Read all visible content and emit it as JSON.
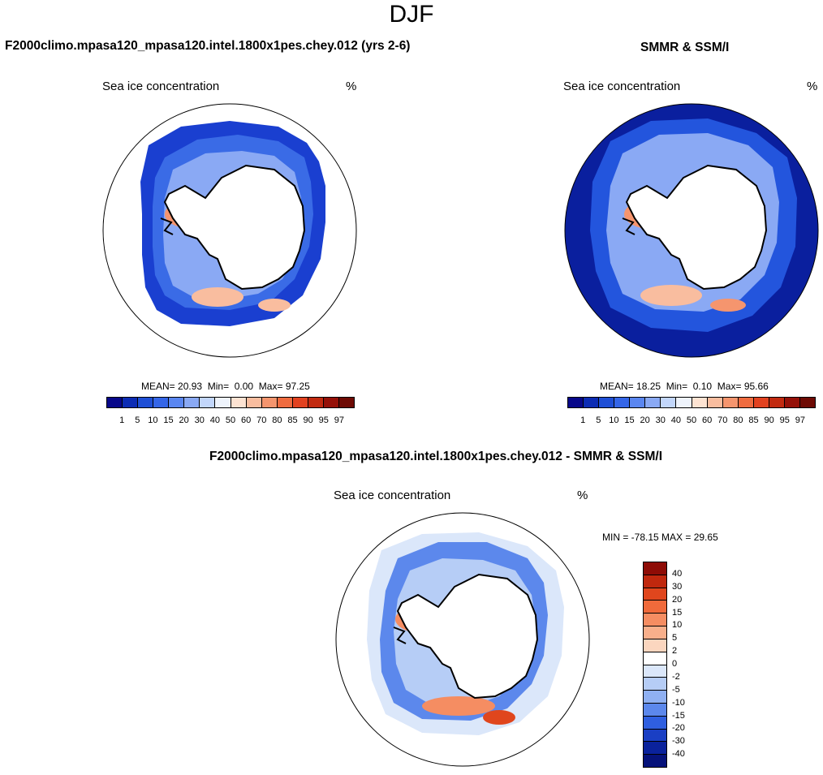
{
  "page_title": "DJF",
  "panels": [
    {
      "title": "F2000climo.mpasa120_mpasa120.intel.1800x1pes.chey.012 (yrs 2-6)",
      "field_label": "Sea ice concentration",
      "units": "%",
      "stats": {
        "mean_label": "MEAN=",
        "mean": "20.93",
        "min_label": "Min=",
        "min": "0.00",
        "max_label": "Max=",
        "max": "97.25"
      }
    },
    {
      "title": "SMMR & SSM/I",
      "field_label": "Sea ice concentration",
      "units": "%",
      "stats": {
        "mean_label": "MEAN=",
        "mean": "18.25",
        "min_label": "Min=",
        "min": "0.10",
        "max_label": "Max=",
        "max": "95.66"
      }
    },
    {
      "title": "F2000climo.mpasa120_mpasa120.intel.1800x1pes.chey.012 - SMMR & SSM/I",
      "field_label": "Sea ice concentration",
      "units": "%",
      "stats_text": "MIN = -78.15 MAX =  29.65"
    }
  ],
  "colorbar_concentration": {
    "levels": [
      "1",
      "5",
      "10",
      "15",
      "20",
      "30",
      "40",
      "50",
      "60",
      "70",
      "80",
      "85",
      "90",
      "95",
      "97"
    ],
    "colors": [
      "#08088a",
      "#0c2cb4",
      "#1f4fd6",
      "#3566e8",
      "#5a86f0",
      "#8aa9f4",
      "#c2d6fa",
      "#eef3fb",
      "#fde3d2",
      "#f9bd9f",
      "#f5956e",
      "#ef6b3f",
      "#e24220",
      "#c22a10",
      "#951008",
      "#6e0a04"
    ]
  },
  "colorbar_difference": {
    "levels": [
      "40",
      "30",
      "20",
      "15",
      "10",
      "5",
      "2",
      "0",
      "-2",
      "-5",
      "-10",
      "-15",
      "-20",
      "-30",
      "-40"
    ],
    "colors": [
      "#8e0c06",
      "#c0280e",
      "#e0461d",
      "#f06a3b",
      "#f58d62",
      "#f8af8b",
      "#fbd6bf",
      "#ffffff",
      "#dbe7fa",
      "#b6cdf6",
      "#8fb0f2",
      "#5c88ec",
      "#2f5fe0",
      "#1a3fc4",
      "#0a229c",
      "#06127a"
    ]
  }
}
